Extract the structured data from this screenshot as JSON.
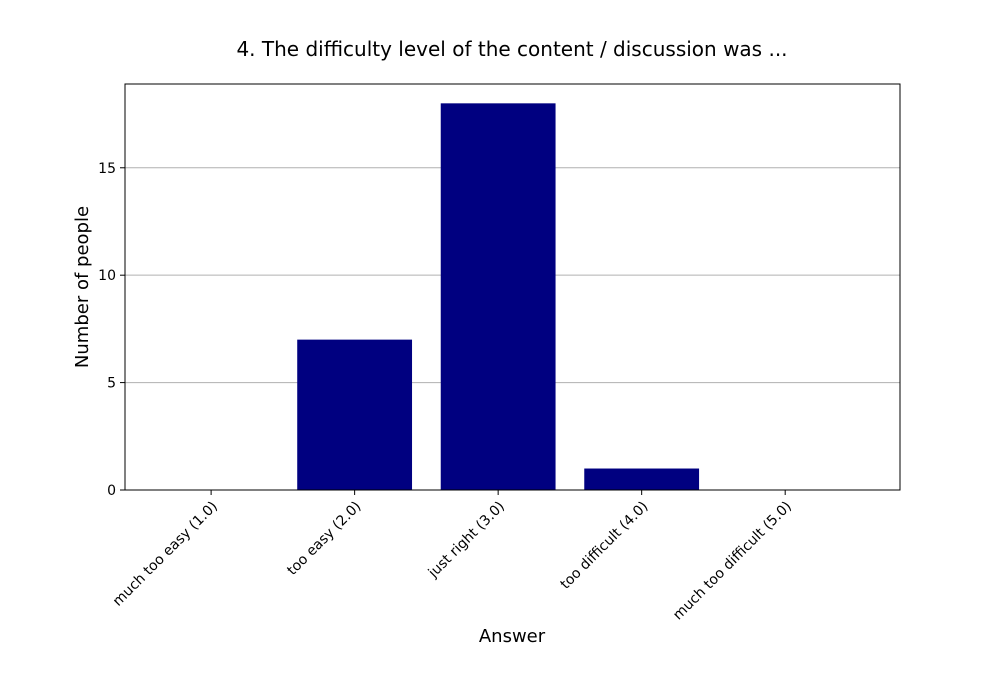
{
  "chart_data": {
    "type": "bar",
    "title": "4. The difficulty level of the content / discussion was ...",
    "xlabel": "Answer",
    "ylabel": "Number of people",
    "categories": [
      "much too easy (1.0)",
      "too easy (2.0)",
      "just right (3.0)",
      "too difficult (4.0)",
      "much too difficult (5.0)"
    ],
    "values": [
      0,
      7,
      18,
      1,
      0
    ],
    "ylim": [
      0,
      18.9
    ],
    "yticks": [
      0,
      5,
      10,
      15
    ],
    "grid": true,
    "bar_color": "#000080"
  }
}
